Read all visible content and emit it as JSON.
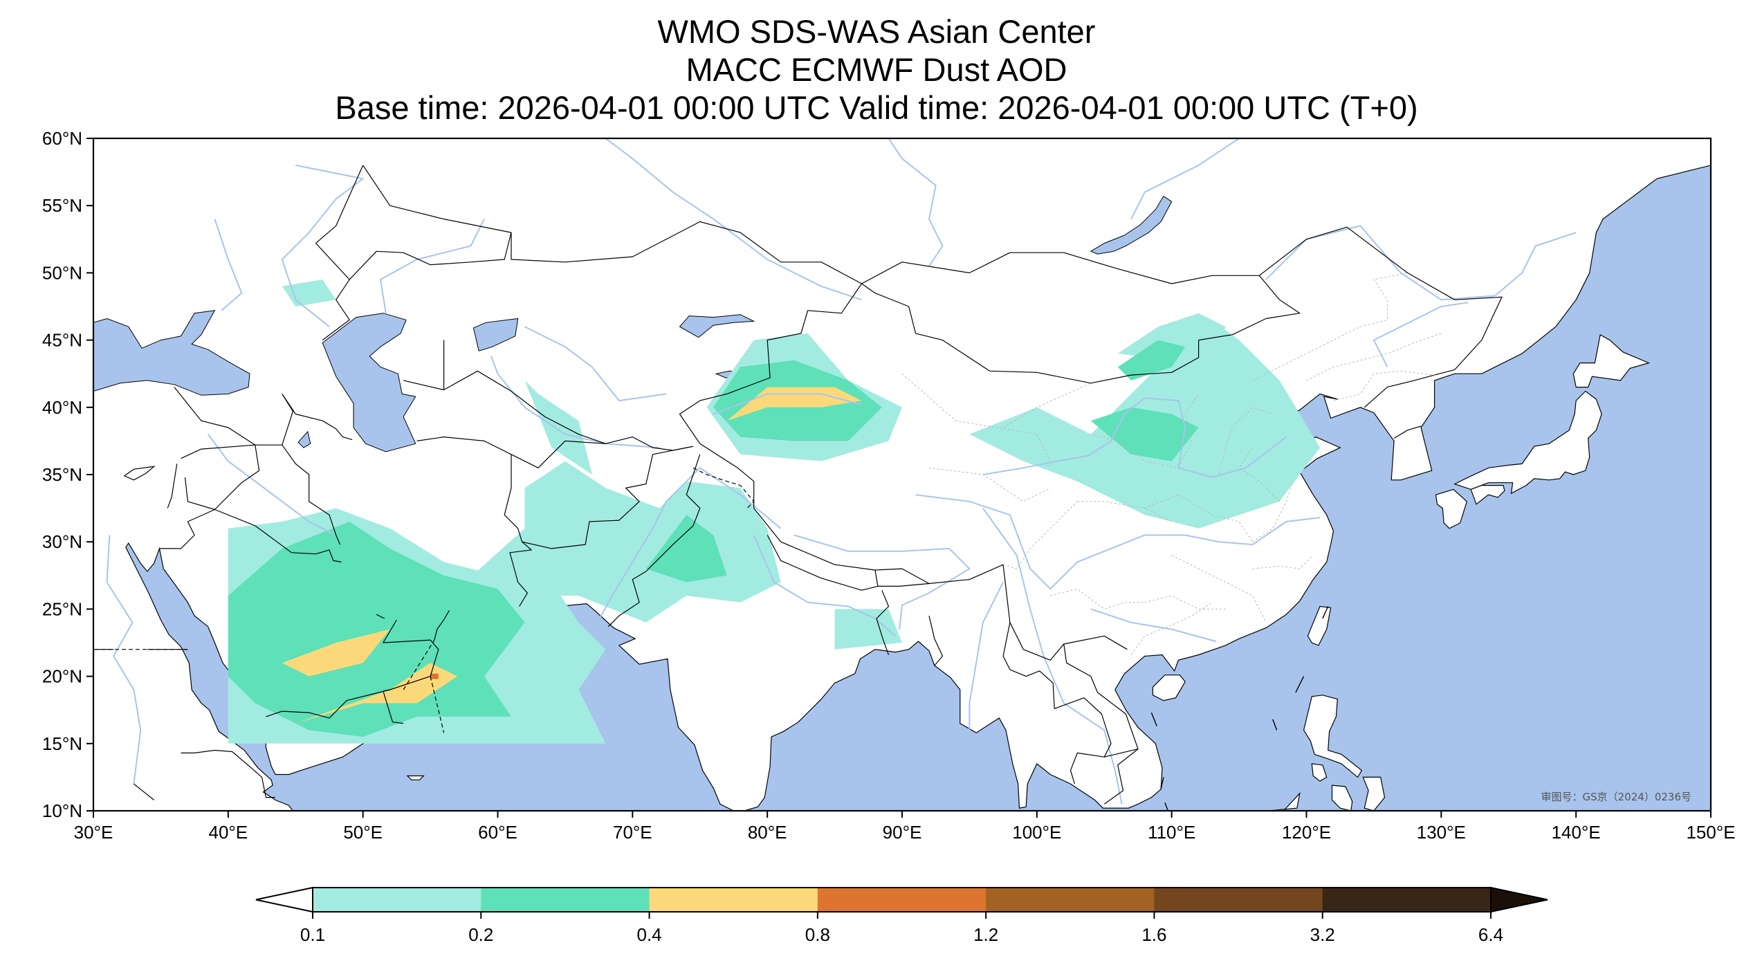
{
  "header": {
    "title_lines": [
      "WMO SDS-WAS Asian Center",
      "MACC ECMWF Dust AOD",
      "Base time: 2026-04-01 00:00 UTC Valid time: 2026-04-01 00:00 UTC (T+0)"
    ]
  },
  "map": {
    "lon_range": [
      30,
      150
    ],
    "lat_range": [
      10,
      60
    ],
    "lon_ticks": [
      {
        "value": 30,
        "label": "30°E"
      },
      {
        "value": 40,
        "label": "40°E"
      },
      {
        "value": 50,
        "label": "50°E"
      },
      {
        "value": 60,
        "label": "60°E"
      },
      {
        "value": 70,
        "label": "70°E"
      },
      {
        "value": 80,
        "label": "80°E"
      },
      {
        "value": 90,
        "label": "90°E"
      },
      {
        "value": 100,
        "label": "100°E"
      },
      {
        "value": 110,
        "label": "110°E"
      },
      {
        "value": 120,
        "label": "120°E"
      },
      {
        "value": 130,
        "label": "130°E"
      },
      {
        "value": 140,
        "label": "140°E"
      },
      {
        "value": 150,
        "label": "150°E"
      }
    ],
    "lat_ticks": [
      {
        "value": 10,
        "label": "10°N"
      },
      {
        "value": 15,
        "label": "15°N"
      },
      {
        "value": 20,
        "label": "20°N"
      },
      {
        "value": 25,
        "label": "25°N"
      },
      {
        "value": 30,
        "label": "30°N"
      },
      {
        "value": 35,
        "label": "35°N"
      },
      {
        "value": 40,
        "label": "40°N"
      },
      {
        "value": 45,
        "label": "45°N"
      },
      {
        "value": 50,
        "label": "50°N"
      },
      {
        "value": 55,
        "label": "55°N"
      },
      {
        "value": 60,
        "label": "60°N"
      }
    ],
    "colors": {
      "ocean": "#a8c4ec",
      "land": "#ffffff",
      "border": "#000000",
      "river": "#a8c4ec"
    },
    "watermark": "审图号：GS京（2024）0236号",
    "dust_regions": [
      {
        "level": 0.1,
        "color": "#a2ebe0",
        "points": [
          [
            40,
            31
          ],
          [
            44,
            31.5
          ],
          [
            48,
            32.5
          ],
          [
            52,
            31
          ],
          [
            56,
            28.5
          ],
          [
            60,
            27.5
          ],
          [
            64,
            27
          ],
          [
            66,
            24
          ],
          [
            68,
            22
          ],
          [
            66,
            19
          ],
          [
            68,
            15
          ],
          [
            40,
            15
          ]
        ]
      },
      {
        "level": 0.1,
        "color": "#a2ebe0",
        "points": [
          [
            57,
            26.5
          ],
          [
            62,
            31
          ],
          [
            62,
            34
          ],
          [
            65,
            36
          ],
          [
            68,
            34
          ],
          [
            72,
            32.5
          ],
          [
            74,
            34.5
          ],
          [
            78,
            34
          ],
          [
            80,
            31
          ],
          [
            81,
            27
          ],
          [
            78,
            25.5
          ],
          [
            74,
            26
          ],
          [
            71,
            24
          ],
          [
            66,
            26
          ],
          [
            60,
            26
          ]
        ]
      },
      {
        "level": 0.1,
        "color": "#a2ebe0",
        "points": [
          [
            62,
            42
          ],
          [
            64,
            37
          ],
          [
            67,
            35
          ],
          [
            66,
            39
          ],
          [
            63,
            41
          ]
        ]
      },
      {
        "level": 0.1,
        "color": "#a2ebe0",
        "points": [
          [
            85,
            25
          ],
          [
            89,
            25
          ],
          [
            90,
            22.5
          ],
          [
            85,
            22
          ]
        ]
      },
      {
        "level": 0.1,
        "color": "#a2ebe0",
        "points": [
          [
            75.5,
            40
          ],
          [
            79,
            45
          ],
          [
            83,
            45.5
          ],
          [
            86,
            42
          ],
          [
            90,
            40
          ],
          [
            89,
            37.5
          ],
          [
            84,
            36
          ],
          [
            78,
            36.5
          ]
        ]
      },
      {
        "level": 0.1,
        "color": "#a2ebe0",
        "points": [
          [
            100,
            40
          ],
          [
            104,
            38
          ],
          [
            107,
            41
          ],
          [
            110,
            44
          ],
          [
            113,
            46.5
          ],
          [
            115,
            45
          ],
          [
            118,
            42
          ],
          [
            121,
            37
          ],
          [
            118,
            33
          ],
          [
            112,
            31
          ],
          [
            108,
            32
          ],
          [
            103,
            34.5
          ],
          [
            99,
            36
          ],
          [
            95,
            38
          ]
        ]
      },
      {
        "level": 0.1,
        "color": "#a2ebe0",
        "points": [
          [
            106,
            44
          ],
          [
            109,
            46
          ],
          [
            112,
            47
          ],
          [
            114,
            46
          ],
          [
            113,
            44
          ],
          [
            110,
            43.5
          ]
        ]
      },
      {
        "level": 0.1,
        "color": "#a2ebe0",
        "points": [
          [
            44,
            49
          ],
          [
            47,
            49.5
          ],
          [
            48,
            48
          ],
          [
            45,
            47.5
          ]
        ]
      },
      {
        "level": 0.2,
        "color": "#5ee0b8",
        "points": [
          [
            40,
            26
          ],
          [
            44,
            29.5
          ],
          [
            49,
            31.5
          ],
          [
            52,
            29.5
          ],
          [
            56,
            27.5
          ],
          [
            60,
            26.5
          ],
          [
            62,
            24
          ],
          [
            59,
            20
          ],
          [
            61,
            17
          ],
          [
            54,
            17
          ],
          [
            50,
            15.5
          ],
          [
            46,
            16
          ],
          [
            42,
            18
          ],
          [
            40,
            20
          ]
        ]
      },
      {
        "level": 0.2,
        "color": "#5ee0b8",
        "points": [
          [
            71,
            28
          ],
          [
            74,
            32
          ],
          [
            76,
            30.5
          ],
          [
            77,
            27.5
          ],
          [
            74,
            27
          ]
        ]
      },
      {
        "level": 0.2,
        "color": "#5ee0b8",
        "points": [
          [
            76,
            40
          ],
          [
            78,
            43
          ],
          [
            82,
            43.5
          ],
          [
            86,
            42
          ],
          [
            88.5,
            40
          ],
          [
            86,
            37.5
          ],
          [
            82,
            37.5
          ],
          [
            78,
            37.8
          ]
        ]
      },
      {
        "level": 0.2,
        "color": "#5ee0b8",
        "points": [
          [
            106,
            43
          ],
          [
            109,
            45
          ],
          [
            111,
            44.5
          ],
          [
            110,
            43
          ],
          [
            107,
            42
          ]
        ]
      },
      {
        "level": 0.2,
        "color": "#5ee0b8",
        "points": [
          [
            104,
            39
          ],
          [
            107,
            40
          ],
          [
            110,
            39.5
          ],
          [
            112,
            38.5
          ],
          [
            110,
            36
          ],
          [
            107,
            36.5
          ]
        ]
      },
      {
        "level": 0.4,
        "color": "#fbd97a",
        "points": [
          [
            44,
            21
          ],
          [
            48,
            22.5
          ],
          [
            52,
            23.5
          ],
          [
            50,
            21
          ],
          [
            46,
            20
          ]
        ]
      },
      {
        "level": 0.4,
        "color": "#fbd97a",
        "points": [
          [
            45,
            16.5
          ],
          [
            50,
            18
          ],
          [
            54,
            18
          ],
          [
            57,
            20
          ],
          [
            55,
            21
          ],
          [
            52,
            19
          ]
        ]
      },
      {
        "level": 0.4,
        "color": "#fbd97a",
        "points": [
          [
            77,
            39
          ],
          [
            80,
            41.5
          ],
          [
            85,
            41.5
          ],
          [
            87,
            40.5
          ],
          [
            84,
            40
          ],
          [
            80,
            40
          ]
        ]
      },
      {
        "level": 0.8,
        "color": "#dd7430",
        "points": [
          [
            55,
            20.2
          ],
          [
            55.6,
            20.2
          ],
          [
            55.6,
            19.8
          ],
          [
            55,
            19.8
          ]
        ]
      }
    ]
  },
  "chart_data": {
    "type": "heatmap",
    "colorbar": {
      "levels": [
        "0.1",
        "0.2",
        "0.4",
        "0.8",
        "1.2",
        "1.6",
        "3.2",
        "6.4"
      ],
      "colors": [
        "#a2ebe0",
        "#5ee0b8",
        "#fbd97a",
        "#dd7430",
        "#a26224",
        "#744620",
        "#3a2616"
      ],
      "extend_min_color": "#ffffff",
      "extend_max_color": "#1a1008"
    }
  }
}
